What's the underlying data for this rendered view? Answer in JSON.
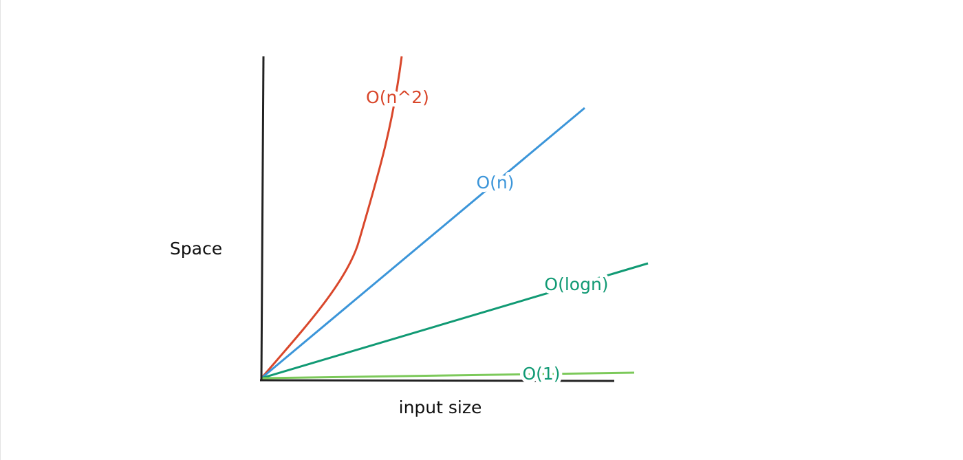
{
  "axes": {
    "y_label": "Space",
    "x_label": "input size"
  },
  "curves": [
    {
      "label": "O(n^2)"
    },
    {
      "label": "O(n)"
    },
    {
      "label": "O(logn)"
    },
    {
      "label": "O(1)"
    }
  ]
}
